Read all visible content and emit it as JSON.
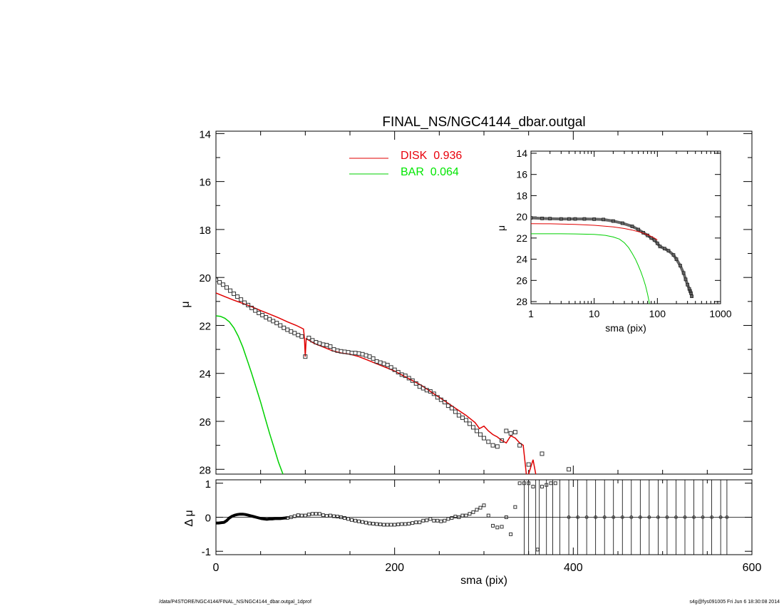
{
  "chart_data": [
    {
      "panel": "main",
      "type": "scatter",
      "title": "FINAL_NS/NGC4144_dbar.outgal",
      "xlabel": "",
      "ylabel": "μ",
      "xlim": [
        0,
        600
      ],
      "ylim": [
        28.2,
        13.9
      ],
      "y_inverted": true,
      "yticks": [
        14,
        16,
        18,
        20,
        22,
        24,
        26,
        28
      ],
      "yticklabels": [
        "14",
        "16",
        "18",
        "20",
        "22",
        "24",
        "26",
        "28"
      ],
      "legend": {
        "placement": "top-center",
        "entries": [
          {
            "label": "DISK  0.936",
            "color": "#e8000b"
          },
          {
            "label": "BAR  0.064",
            "color": "#00e600"
          }
        ]
      },
      "series": [
        {
          "name": "DISK  0.936",
          "kind": "line",
          "color": "#e00000",
          "x": [
            0,
            10,
            20,
            30,
            40,
            50,
            60,
            70,
            80,
            90,
            98,
            99,
            100,
            101,
            110,
            120,
            130,
            140,
            150,
            160,
            170,
            180,
            190,
            200,
            210,
            220,
            230,
            240,
            250,
            260,
            270,
            280,
            290,
            295,
            300,
            305,
            310,
            315,
            320,
            325,
            330,
            335,
            340,
            344,
            348,
            350,
            355,
            358
          ],
          "y": [
            20.65,
            20.8,
            20.95,
            21.08,
            21.22,
            21.38,
            21.53,
            21.68,
            21.85,
            22.0,
            22.15,
            22.5,
            23.3,
            22.55,
            22.75,
            22.9,
            23.05,
            23.15,
            23.2,
            23.3,
            23.45,
            23.6,
            23.75,
            23.9,
            24.1,
            24.3,
            24.5,
            24.75,
            25.0,
            25.25,
            25.5,
            25.75,
            26.05,
            26.3,
            26.2,
            26.4,
            26.55,
            26.65,
            26.8,
            26.9,
            26.6,
            26.7,
            26.9,
            27.0,
            28.4,
            28.2,
            27.6,
            28.2
          ]
        },
        {
          "name": "BAR  0.064",
          "kind": "line",
          "color": "#00d000",
          "x": [
            0,
            5,
            10,
            15,
            20,
            25,
            30,
            35,
            40,
            45,
            50,
            55,
            60,
            65,
            70,
            75
          ],
          "y": [
            21.6,
            21.62,
            21.7,
            21.85,
            22.1,
            22.45,
            22.9,
            23.45,
            24.0,
            24.6,
            25.2,
            25.85,
            26.5,
            27.1,
            27.7,
            28.2
          ]
        },
        {
          "name": "",
          "kind": "points",
          "marker": "open-square",
          "color": "#333333",
          "x": [
            0,
            4,
            8,
            12,
            16,
            20,
            24,
            28,
            32,
            36,
            40,
            44,
            48,
            52,
            56,
            60,
            64,
            68,
            72,
            76,
            80,
            84,
            88,
            92,
            96,
            100,
            104,
            108,
            112,
            116,
            120,
            124,
            128,
            132,
            136,
            140,
            144,
            148,
            152,
            156,
            160,
            164,
            168,
            172,
            176,
            180,
            184,
            188,
            192,
            196,
            200,
            204,
            208,
            212,
            216,
            220,
            224,
            228,
            232,
            236,
            240,
            244,
            248,
            252,
            256,
            260,
            264,
            268,
            272,
            276,
            280,
            284,
            288,
            292,
            296,
            300,
            305,
            310,
            315,
            320,
            325,
            330,
            335,
            340,
            350,
            365,
            395
          ],
          "y": [
            20.1,
            20.2,
            20.3,
            20.42,
            20.55,
            20.68,
            20.8,
            20.92,
            21.05,
            21.15,
            21.27,
            21.38,
            21.48,
            21.57,
            21.66,
            21.74,
            21.82,
            21.9,
            22.0,
            22.1,
            22.18,
            22.25,
            22.32,
            22.4,
            22.46,
            23.3,
            22.52,
            22.62,
            22.7,
            22.75,
            22.8,
            22.82,
            22.88,
            23.0,
            23.05,
            23.08,
            23.1,
            23.12,
            23.15,
            23.15,
            23.17,
            23.2,
            23.25,
            23.3,
            23.38,
            23.5,
            23.55,
            23.6,
            23.65,
            23.75,
            23.85,
            23.95,
            24.05,
            24.1,
            24.2,
            24.3,
            24.42,
            24.55,
            24.62,
            24.7,
            24.75,
            24.85,
            25.0,
            25.1,
            25.2,
            25.35,
            25.45,
            25.6,
            25.75,
            25.85,
            25.95,
            26.1,
            26.25,
            26.4,
            26.55,
            26.7,
            26.85,
            27.0,
            27.05,
            26.8,
            26.4,
            26.5,
            26.45,
            27.0,
            27.8,
            27.35,
            28.0
          ]
        }
      ]
    },
    {
      "panel": "residual",
      "type": "scatter",
      "xlabel": "sma (pix)",
      "ylabel": "Δ μ",
      "xlim": [
        0,
        600
      ],
      "ylim": [
        -1.1,
        1.1
      ],
      "xticks": [
        0,
        200,
        400,
        600
      ],
      "xticklabels": [
        "0",
        "200",
        "400",
        "600"
      ],
      "yticks": [
        -1,
        0,
        1
      ],
      "yticklabels": [
        "-1",
        "0",
        "1"
      ],
      "zero_line": true,
      "thick_curve": {
        "x": [
          0,
          3,
          6,
          9,
          12,
          15,
          18,
          21,
          24,
          27,
          30,
          33,
          36,
          39,
          42,
          45,
          48,
          51,
          54,
          57,
          60,
          63,
          66,
          69,
          72,
          75,
          78
        ],
        "y": [
          -0.17,
          -0.17,
          -0.16,
          -0.15,
          -0.1,
          -0.02,
          0.03,
          0.06,
          0.08,
          0.09,
          0.09,
          0.08,
          0.06,
          0.04,
          0.02,
          0.0,
          -0.02,
          -0.04,
          -0.05,
          -0.06,
          -0.05,
          -0.05,
          -0.04,
          -0.04,
          -0.04,
          -0.03,
          -0.02
        ]
      },
      "points": {
        "x": [
          80,
          84,
          88,
          92,
          96,
          100,
          104,
          108,
          112,
          116,
          120,
          124,
          128,
          132,
          136,
          140,
          144,
          148,
          152,
          156,
          160,
          164,
          168,
          172,
          176,
          180,
          184,
          188,
          192,
          196,
          200,
          204,
          208,
          212,
          216,
          220,
          224,
          228,
          232,
          236,
          240,
          244,
          248,
          252,
          256,
          260,
          264,
          268,
          272,
          276,
          280,
          284,
          288,
          292,
          296,
          300,
          305,
          310,
          315,
          320,
          325,
          330,
          335,
          340,
          345,
          350,
          355,
          360,
          365,
          370,
          375,
          380
        ],
        "y": [
          -0.02,
          0.0,
          0.03,
          0.06,
          0.05,
          0.05,
          0.08,
          0.1,
          0.1,
          0.1,
          0.06,
          0.04,
          0.05,
          0.03,
          0.02,
          0.0,
          -0.02,
          -0.05,
          -0.08,
          -0.1,
          -0.12,
          -0.14,
          -0.16,
          -0.18,
          -0.19,
          -0.2,
          -0.21,
          -0.22,
          -0.22,
          -0.22,
          -0.22,
          -0.21,
          -0.2,
          -0.2,
          -0.19,
          -0.17,
          -0.15,
          -0.15,
          -0.1,
          -0.09,
          -0.05,
          -0.1,
          -0.1,
          -0.12,
          -0.1,
          -0.05,
          -0.02,
          0.02,
          0.0,
          0.05,
          0.05,
          0.1,
          0.15,
          0.22,
          0.28,
          0.35,
          0.05,
          -0.25,
          -0.3,
          -0.28,
          0.0,
          -0.5,
          0.3,
          1.0,
          1.0,
          1.0,
          0.9,
          -0.95,
          0.9,
          0.95,
          1.0,
          1.0
        ],
        "error_bars": [
          {
            "x": 345,
            "low": -1.1,
            "high": 1.1
          },
          {
            "x": 350,
            "low": -1.1,
            "high": 1.1
          },
          {
            "x": 358,
            "low": -1.1,
            "high": 1.1
          },
          {
            "x": 362,
            "low": -1.1,
            "high": 1.1
          },
          {
            "x": 370,
            "low": -1.1,
            "high": 1.1
          },
          {
            "x": 377,
            "low": -1.1,
            "high": 1.1
          },
          {
            "x": 385,
            "low": -1.1,
            "high": 1.1
          }
        ]
      },
      "outer_points": {
        "x": [
          395,
          405,
          415,
          425,
          435,
          445,
          455,
          465,
          475,
          485,
          495,
          505,
          515,
          525,
          535,
          545,
          555,
          565,
          572
        ],
        "y": [
          0,
          0,
          0,
          0,
          0,
          0,
          0,
          0,
          0,
          0,
          0,
          0,
          0,
          0,
          0,
          0,
          0,
          0,
          0
        ],
        "error_low": -1.1,
        "error_high": 1.1
      }
    },
    {
      "panel": "inset",
      "type": "line",
      "xlabel": "sma (pix)",
      "ylabel": "μ",
      "x_scale": "log",
      "xlim": [
        1,
        1000
      ],
      "ylim": [
        28.2,
        13.8
      ],
      "xticks": [
        1,
        10,
        100,
        1000
      ],
      "xticklabels": [
        "1",
        "10",
        "100",
        "1000"
      ],
      "yticks": [
        14,
        16,
        18,
        20,
        22,
        24,
        26,
        28
      ],
      "yticklabels": [
        "14",
        "16",
        "18",
        "20",
        "22",
        "24",
        "26",
        "28"
      ],
      "series": [
        {
          "name": "",
          "kind": "points",
          "color": "#444444",
          "x": [
            1,
            1.5,
            2,
            3,
            4,
            5,
            7,
            10,
            14,
            20,
            28,
            40,
            50,
            60,
            70,
            80,
            90,
            100,
            110,
            130,
            150,
            180,
            200,
            230,
            260,
            280,
            300,
            320,
            330,
            340,
            350
          ],
          "y": [
            20.1,
            20.15,
            20.17,
            20.2,
            20.2,
            20.2,
            20.2,
            20.22,
            20.25,
            20.4,
            20.6,
            20.9,
            21.2,
            21.5,
            21.75,
            22.0,
            22.2,
            22.5,
            22.8,
            23.0,
            23.2,
            23.6,
            24.0,
            24.6,
            25.3,
            25.9,
            26.4,
            26.8,
            27.0,
            27.2,
            27.5
          ]
        },
        {
          "name": "",
          "kind": "line",
          "color": "#e00000",
          "x": [
            1,
            2,
            3,
            5,
            10,
            20,
            30,
            40,
            50,
            60,
            70,
            80,
            90,
            100
          ],
          "y": [
            20.65,
            20.66,
            20.68,
            20.72,
            20.8,
            20.95,
            21.1,
            21.25,
            21.4,
            21.55,
            21.7,
            21.85,
            22.0,
            22.2
          ]
        },
        {
          "name": "",
          "kind": "line",
          "color": "#00d000",
          "x": [
            1,
            2,
            3,
            5,
            10,
            15,
            20,
            25,
            30,
            35,
            40,
            45,
            50,
            55,
            60,
            65,
            70,
            75
          ],
          "y": [
            21.6,
            21.6,
            21.6,
            21.61,
            21.65,
            21.75,
            21.9,
            22.1,
            22.45,
            22.9,
            23.45,
            24.0,
            24.6,
            25.2,
            25.85,
            26.5,
            27.3,
            28.2
          ]
        }
      ]
    }
  ],
  "footer": {
    "left": "/data/P4STORE/NGC4144/FINAL_NS/NGC4144_dbar.outgal_1dprof",
    "right": "s4g@fys091005  Fri Jun  6 18:30:08 2014"
  }
}
